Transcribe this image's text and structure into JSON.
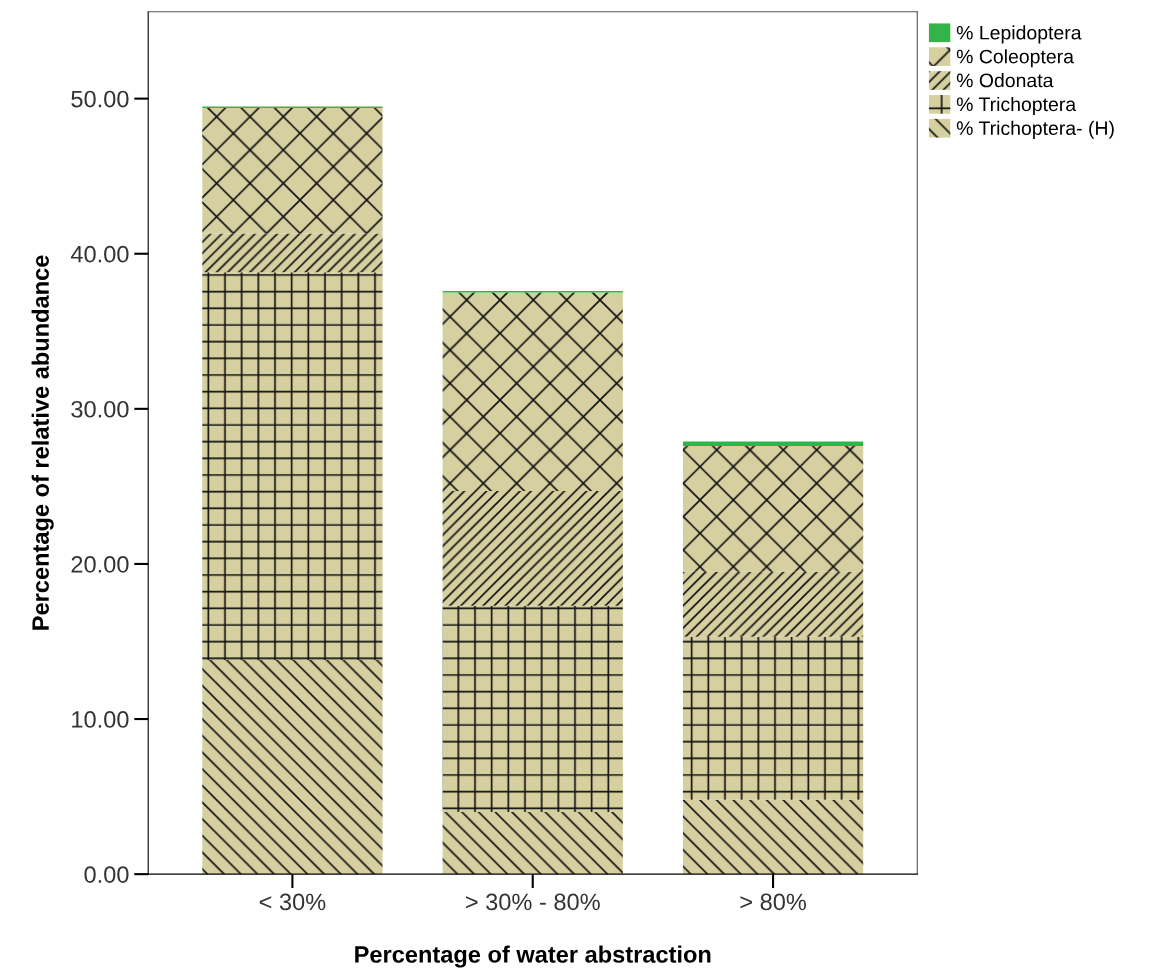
{
  "chart_data": {
    "type": "bar",
    "stacked": true,
    "xlabel": "Percentage of water abstraction",
    "ylabel": "Percentage of relative abundance",
    "categories": [
      "< 30%",
      "> 30% - 80%",
      "> 80%"
    ],
    "series": [
      {
        "name": "% Trichoptera- (H)",
        "color": "#d6cf9f",
        "values": [
          13.8,
          4.0,
          4.8
        ]
      },
      {
        "name": "% Trichoptera",
        "color": "#d6cf9f",
        "values": [
          25.0,
          13.3,
          10.5
        ]
      },
      {
        "name": "% Odonata",
        "color": "#d6cf9f",
        "values": [
          2.5,
          7.4,
          4.2
        ]
      },
      {
        "name": "% Coleoptera",
        "color": "#d6cf9f",
        "values": [
          8.1,
          12.8,
          8.1
        ]
      },
      {
        "name": "% Lepidoptera",
        "color": "#33b34a",
        "values": [
          0.1,
          0.1,
          0.3
        ]
      }
    ],
    "ylim": [
      0,
      55.6
    ],
    "yticks": [
      {
        "value": 0,
        "label": "0.00"
      },
      {
        "value": 10,
        "label": "10.00"
      },
      {
        "value": 20,
        "label": "20.00"
      },
      {
        "value": 30,
        "label": "30.00"
      },
      {
        "value": 40,
        "label": "40.00"
      },
      {
        "value": 50,
        "label": "50.00"
      }
    ],
    "grid": false,
    "legend": "top right"
  }
}
